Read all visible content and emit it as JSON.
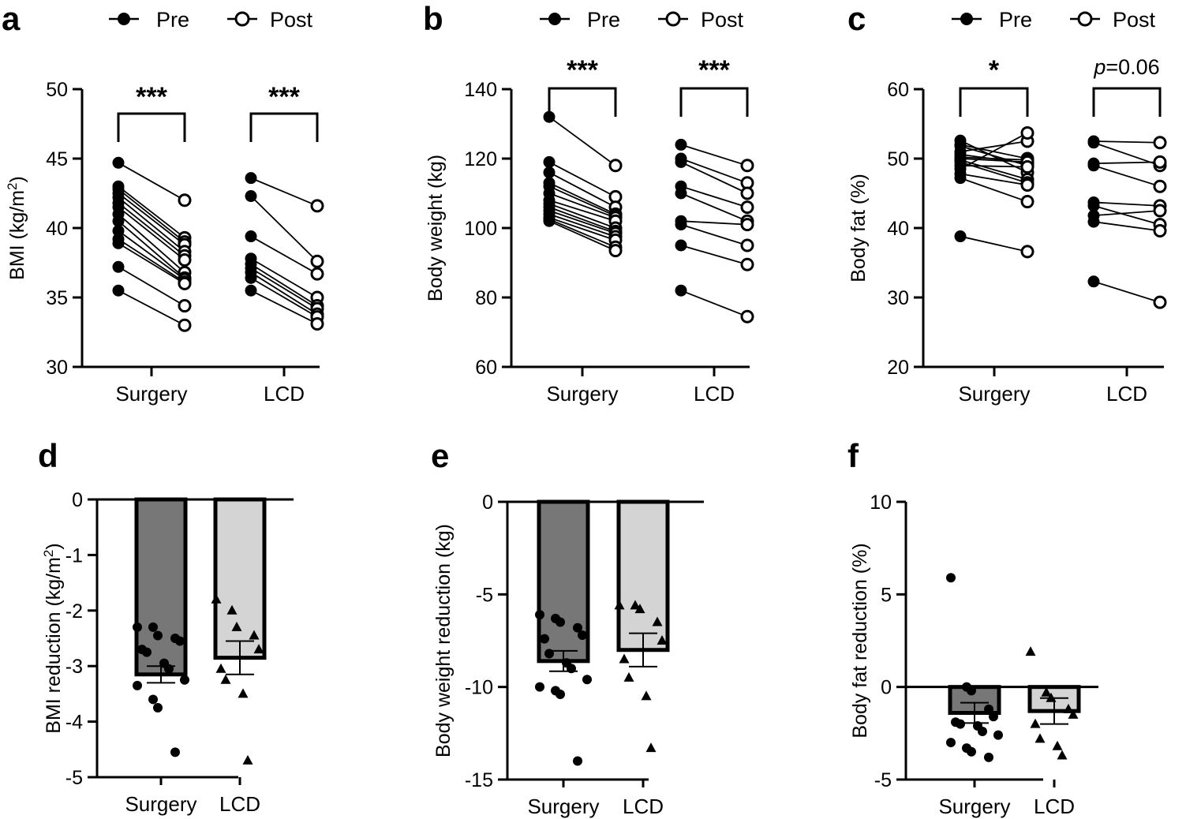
{
  "legend": {
    "pre": "Pre",
    "post": "Post"
  },
  "chart_data": [
    {
      "panel": "a",
      "type": "line",
      "ylabel": "BMI (kg/m²)",
      "ylabel_main": "BMI (kg/m",
      "ylabel_sup": "2",
      "ylabel_end": ")",
      "ylim": [
        30,
        50
      ],
      "yticks": [
        30,
        35,
        40,
        45,
        50
      ],
      "categories": [
        "Surgery",
        "LCD"
      ],
      "significance": [
        "***",
        "***"
      ],
      "groups": [
        {
          "name": "Surgery",
          "pre": [
            44.7,
            43.0,
            42.8,
            42.5,
            42.2,
            41.8,
            41.5,
            41.0,
            40.5,
            39.8,
            39.2,
            38.9,
            37.2,
            35.5
          ],
          "post": [
            42.0,
            39.3,
            39.0,
            38.8,
            38.3,
            38.0,
            37.7,
            36.8,
            36.4,
            36.3,
            36.1,
            36.0,
            34.4,
            33.0
          ]
        },
        {
          "name": "LCD",
          "pre": [
            43.6,
            42.3,
            39.4,
            37.8,
            37.4,
            37.1,
            36.8,
            36.4,
            35.5
          ],
          "post": [
            41.6,
            37.6,
            36.7,
            35.0,
            34.4,
            34.2,
            33.8,
            33.6,
            33.1
          ]
        }
      ]
    },
    {
      "panel": "b",
      "type": "line",
      "ylabel": "Body weight (kg)",
      "ylim": [
        60,
        140
      ],
      "yticks": [
        60,
        80,
        100,
        120,
        140
      ],
      "categories": [
        "Surgery",
        "LCD"
      ],
      "significance": [
        "***",
        "***"
      ],
      "groups": [
        {
          "name": "Surgery",
          "pre": [
            132.0,
            119.0,
            116.0,
            113.0,
            112.0,
            110.0,
            108.0,
            107.0,
            106.0,
            105.0,
            104.0,
            103.0,
            102.5,
            102.0
          ],
          "post": [
            118.0,
            109.0,
            106.0,
            104.0,
            103.5,
            103.0,
            102.0,
            100.0,
            99.0,
            98.5,
            97.5,
            96.5,
            94.5,
            93.5
          ]
        },
        {
          "name": "LCD",
          "pre": [
            124.0,
            120.0,
            119.0,
            112.0,
            110.0,
            102.0,
            101.0,
            95.0,
            82.0
          ],
          "post": [
            118.0,
            113.0,
            110.0,
            106.0,
            102.0,
            101.0,
            95.0,
            89.5,
            74.5
          ]
        }
      ]
    },
    {
      "panel": "c",
      "type": "line",
      "ylabel": "Body fat (%)",
      "ylim": [
        20,
        60
      ],
      "yticks": [
        20,
        30,
        40,
        50,
        60
      ],
      "categories": [
        "Surgery",
        "LCD"
      ],
      "significance": [
        "*",
        "=0.06"
      ],
      "sig_italic_prefix": "p",
      "groups": [
        {
          "name": "Surgery",
          "pre": [
            52.6,
            52.0,
            51.8,
            51.0,
            50.6,
            50.2,
            50.0,
            49.8,
            49.5,
            49.0,
            48.5,
            47.8,
            47.2,
            38.8
          ],
          "post": [
            48.0,
            50.0,
            49.0,
            52.5,
            49.3,
            49.8,
            49.5,
            47.0,
            46.5,
            48.8,
            53.7,
            46.2,
            43.8,
            36.6
          ]
        },
        {
          "name": "LCD",
          "pre": [
            52.5,
            52.3,
            49.3,
            49.0,
            43.7,
            43.2,
            41.8,
            40.9,
            32.3
          ],
          "post": [
            52.3,
            49.0,
            49.5,
            46.0,
            43.2,
            40.5,
            42.5,
            39.6,
            29.3
          ]
        }
      ]
    },
    {
      "panel": "d",
      "type": "bar",
      "ylabel": "BMI reduction (kg/m²)",
      "ylabel_main": "BMI reduction (kg/m",
      "ylabel_sup": "2",
      "ylabel_end": ")",
      "ylim": [
        -5,
        0
      ],
      "yticks": [
        -5,
        -4,
        -3,
        -2,
        -1,
        0
      ],
      "categories": [
        "Surgery",
        "LCD"
      ],
      "means": [
        -3.15,
        -2.85
      ],
      "sem": [
        0.15,
        0.3
      ],
      "points": [
        [
          -2.3,
          -2.3,
          -2.45,
          -2.5,
          -2.55,
          -2.7,
          -2.75,
          -2.95,
          -3.05,
          -3.25,
          -3.35,
          -3.6,
          -3.75,
          -4.55
        ],
        [
          -1.8,
          -2.0,
          -2.3,
          -2.45,
          -2.7,
          -3.05,
          -3.25,
          -3.5,
          -4.7
        ]
      ]
    },
    {
      "panel": "e",
      "type": "bar",
      "ylabel": "Body weight reduction (kg)",
      "ylim": [
        -15,
        0
      ],
      "yticks": [
        -15,
        -10,
        -5,
        0
      ],
      "categories": [
        "Surgery",
        "LCD"
      ],
      "means": [
        -8.6,
        -8.0
      ],
      "sem": [
        0.55,
        0.9
      ],
      "points": [
        [
          -6.1,
          -6.3,
          -6.5,
          -6.8,
          -7.2,
          -7.4,
          -8.2,
          -8.7,
          -9.0,
          -9.6,
          -10.0,
          -10.2,
          -10.4,
          -14.0
        ],
        [
          -5.6,
          -5.6,
          -5.8,
          -6.5,
          -7.5,
          -8.5,
          -9.5,
          -10.5,
          -13.3
        ]
      ]
    },
    {
      "panel": "f",
      "type": "bar",
      "ylabel": "Body fat reduction (%)",
      "ylim": [
        -5,
        10
      ],
      "yticks": [
        -5,
        0,
        5,
        10
      ],
      "categories": [
        "Surgery",
        "LCD"
      ],
      "means": [
        -1.4,
        -1.3
      ],
      "sem": [
        0.55,
        0.7
      ],
      "points": [
        [
          5.9,
          0.0,
          -0.2,
          -1.2,
          -1.6,
          -1.9,
          -2.0,
          -2.1,
          -2.4,
          -2.6,
          -3.0,
          -3.3,
          -3.5,
          -3.8
        ],
        [
          1.9,
          -0.3,
          -0.6,
          -1.2,
          -1.5,
          -2.0,
          -2.8,
          -3.2,
          -3.7
        ]
      ]
    }
  ]
}
